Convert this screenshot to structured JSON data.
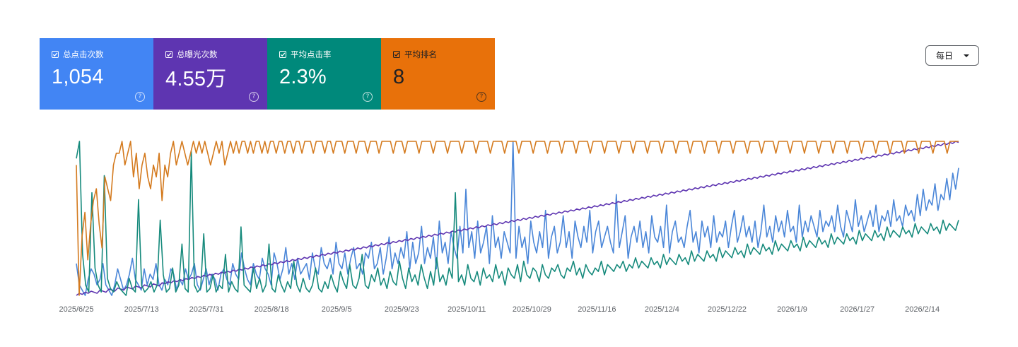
{
  "metrics": [
    {
      "label": "总点击次数",
      "value": "1,054",
      "help": "?",
      "color": "#4285f4"
    },
    {
      "label": "总曝光次数",
      "value": "4.55万",
      "help": "?",
      "color": "#5e35b1"
    },
    {
      "label": "平均点击率",
      "value": "2.3%",
      "help": "?",
      "color": "#00897b"
    },
    {
      "label": "平均排名",
      "value": "8",
      "help": "?",
      "color": "#e8710a"
    }
  ],
  "granularity": {
    "label": "每日"
  },
  "chart_data": {
    "type": "line",
    "x_tick_labels": [
      "2025/6/25",
      "2025/7/13",
      "2025/7/31",
      "2025/8/18",
      "2025/9/5",
      "2025/9/23",
      "2025/10/11",
      "2025/10/29",
      "2025/11/16",
      "2025/12/4",
      "2025/12/22",
      "2026/1/9",
      "2026/1/27",
      "2026/2/14"
    ],
    "x_range": [
      "2025/6/25",
      "2026/2/27"
    ],
    "grid": false,
    "legend": "metric cards (top)",
    "series": [
      {
        "name": "总点击次数",
        "color": "#4a86d8",
        "values": [
          6,
          2,
          1,
          0,
          3,
          5,
          4,
          2,
          3,
          6,
          2,
          1,
          0,
          2,
          5,
          3,
          1,
          2,
          4,
          7,
          3,
          2,
          1,
          5,
          2,
          4,
          3,
          6,
          2,
          1,
          3,
          2,
          5,
          4,
          1,
          3,
          2,
          5,
          3,
          4,
          6,
          2,
          1,
          3,
          5,
          2,
          4,
          3,
          1,
          4,
          5,
          3,
          2,
          6,
          4,
          3,
          8,
          5,
          3,
          2,
          6,
          4,
          3,
          7,
          5,
          4,
          2,
          8,
          6,
          3,
          5,
          9,
          4,
          6,
          3,
          7,
          4,
          5,
          6,
          3,
          8,
          5,
          4,
          9,
          6,
          5,
          7,
          4,
          10,
          6,
          5,
          8,
          4,
          7,
          9,
          5,
          6,
          4,
          8,
          7,
          10,
          5,
          6,
          9,
          4,
          7,
          11,
          5,
          8,
          6,
          9,
          7,
          12,
          5,
          10,
          6,
          8,
          13,
          6,
          9,
          7,
          11,
          5,
          14,
          8,
          10,
          6,
          12,
          9,
          7,
          13,
          8,
          20,
          9,
          12,
          7,
          14,
          8,
          10,
          13,
          6,
          15,
          9,
          11,
          7,
          12,
          10,
          8,
          29,
          7,
          13,
          9,
          11,
          6,
          14,
          10,
          8,
          12,
          9,
          16,
          7,
          11,
          13,
          8,
          10,
          15,
          9,
          12,
          7,
          14,
          11,
          9,
          13,
          10,
          16,
          8,
          12,
          14,
          9,
          11,
          13,
          10,
          8,
          19,
          9,
          12,
          15,
          7,
          11,
          13,
          10,
          14,
          9,
          12,
          8,
          15,
          11,
          10,
          13,
          9,
          17,
          8,
          12,
          14,
          10,
          11,
          9,
          13,
          16,
          10,
          12,
          8,
          14,
          11,
          13,
          9,
          15,
          10,
          12,
          11,
          14,
          9,
          13,
          16,
          10,
          12,
          15,
          11,
          13,
          10,
          14,
          9,
          12,
          17,
          11,
          13,
          10,
          15,
          12,
          14,
          11,
          16,
          12,
          13,
          10,
          17,
          11,
          14,
          12,
          15,
          13,
          11,
          16,
          12,
          14,
          13,
          15,
          12,
          17,
          13,
          11,
          16,
          14,
          12,
          18,
          13,
          15,
          12,
          14,
          16,
          13,
          17,
          12,
          15,
          14,
          16,
          13,
          18,
          14,
          15,
          13,
          17,
          15,
          16,
          14,
          19,
          15,
          20,
          16,
          18,
          17,
          21,
          16,
          19,
          18,
          22,
          18,
          23,
          20,
          24
        ]
      },
      {
        "name": "总曝光次数",
        "color": "#5e35b1",
        "values": [
          10,
          12,
          11,
          13,
          12,
          14,
          13,
          12,
          15,
          14,
          13,
          16,
          15,
          14,
          17,
          16,
          15,
          18,
          17,
          16,
          19,
          18,
          17,
          20,
          19,
          18,
          21,
          20,
          19,
          22,
          21,
          23,
          22,
          24,
          23,
          25,
          24,
          26,
          25,
          27,
          26,
          28,
          27,
          29,
          28,
          30,
          29,
          31,
          30,
          32,
          31,
          33,
          32,
          34,
          33,
          35,
          34,
          36,
          35,
          37,
          36,
          38,
          37,
          39,
          38,
          40,
          39,
          41,
          40,
          42,
          41,
          43,
          42,
          44,
          43,
          45,
          44,
          46,
          45,
          47,
          46,
          48,
          47,
          49,
          48,
          50,
          49,
          51,
          50,
          52,
          51,
          53,
          52,
          54,
          53,
          55,
          54,
          56,
          55,
          57,
          56,
          58,
          57,
          59,
          58,
          60,
          59,
          61,
          60,
          62,
          61,
          63,
          62,
          64,
          63,
          65,
          64,
          66,
          65,
          67,
          66,
          68,
          67,
          69,
          68,
          70,
          69,
          71,
          70,
          72,
          71,
          73,
          72,
          74,
          73,
          75,
          74,
          76,
          75,
          77,
          76,
          78,
          77,
          79,
          78,
          80,
          79,
          81,
          80,
          82,
          81,
          83,
          82,
          84,
          83,
          85,
          84,
          86,
          85,
          87,
          86,
          88,
          87,
          89,
          88,
          90,
          89,
          91,
          90,
          92,
          91,
          93,
          92,
          94,
          93,
          95,
          94,
          96,
          95,
          97,
          96,
          98,
          97,
          99,
          98,
          100,
          99,
          101,
          100,
          102,
          101,
          103,
          102,
          104,
          103,
          105,
          104,
          106,
          105,
          107,
          106,
          108,
          107,
          109,
          108,
          110,
          109,
          111,
          110,
          112,
          111,
          113,
          112,
          114,
          113,
          115,
          114,
          116,
          115,
          117,
          116,
          118,
          117,
          119,
          118,
          120,
          119,
          121,
          120,
          122,
          121,
          123,
          122,
          124,
          123,
          125,
          124,
          126,
          125,
          127,
          126,
          128,
          127,
          129,
          128,
          130,
          129,
          131,
          130,
          132,
          131,
          133,
          132,
          134,
          133,
          135,
          134,
          136,
          135,
          137,
          136,
          138,
          137,
          139,
          138,
          140,
          139,
          141,
          140,
          142,
          141,
          143,
          142,
          144,
          143,
          145,
          144,
          146,
          145,
          147,
          146,
          148,
          147,
          149,
          148,
          150,
          149,
          151,
          150,
          152,
          151,
          153,
          152,
          154,
          153,
          155,
          154,
          156,
          155
        ]
      },
      {
        "name": "平均点击率",
        "color": "#168a7c",
        "values": [
          40,
          45,
          12,
          3,
          1,
          30,
          8,
          3,
          1,
          35,
          5,
          2,
          1,
          4,
          2,
          1,
          0,
          5,
          2,
          1,
          28,
          3,
          1,
          2,
          4,
          1,
          3,
          22,
          6,
          1,
          2,
          8,
          1,
          3,
          15,
          2,
          1,
          42,
          3,
          1,
          2,
          18,
          1,
          2,
          6,
          1,
          3,
          2,
          12,
          1,
          4,
          2,
          1,
          20,
          3,
          2,
          1,
          8,
          2,
          5,
          1,
          3,
          15,
          2,
          1,
          6,
          3,
          1,
          4,
          2,
          10,
          3,
          1,
          5,
          2,
          1,
          3,
          8,
          2,
          1,
          4,
          2,
          6,
          3,
          1,
          7,
          4,
          2,
          9,
          3,
          2,
          5,
          12,
          3,
          2,
          6,
          4,
          8,
          3,
          5,
          2,
          7,
          4,
          3,
          10,
          5,
          2,
          8,
          4,
          6,
          3,
          9,
          5,
          2,
          7,
          3,
          11,
          4,
          6,
          3,
          8,
          5,
          30,
          4,
          6,
          3,
          9,
          5,
          4,
          7,
          3,
          8,
          5,
          6,
          4,
          9,
          5,
          7,
          3,
          8,
          6,
          5,
          9,
          4,
          10,
          6,
          5,
          8,
          7,
          4,
          9,
          6,
          5,
          8,
          7,
          9,
          6,
          5,
          8,
          7,
          10,
          6,
          8,
          5,
          9,
          7,
          6,
          8,
          7,
          10,
          6,
          9,
          8,
          7,
          9,
          8,
          10,
          7,
          9,
          8,
          11,
          8,
          10,
          9,
          8,
          11,
          9,
          10,
          8,
          12,
          9,
          11,
          10,
          9,
          12,
          10,
          11,
          9,
          13,
          10,
          12,
          11,
          10,
          13,
          11,
          12,
          10,
          14,
          11,
          13,
          12,
          11,
          14,
          12,
          13,
          11,
          15,
          12,
          14,
          13,
          12,
          15,
          13,
          14,
          12,
          16,
          13,
          15,
          14,
          13,
          16,
          14,
          15,
          13,
          17,
          14,
          16,
          15,
          14,
          17,
          15,
          16,
          14,
          18,
          15,
          17,
          16,
          15,
          18,
          16,
          17,
          15,
          19,
          16,
          18,
          17,
          16,
          19,
          17,
          18,
          16,
          20,
          17,
          19,
          18,
          17,
          20,
          18,
          19,
          17,
          21,
          18,
          20,
          19,
          18,
          21,
          19,
          20,
          18,
          22,
          19,
          21,
          20,
          19,
          22
        ]
      },
      {
        "name": "平均排名",
        "color": "#d47a1e",
        "values": [
          4,
          15,
          10,
          8,
          12,
          9,
          7,
          6,
          9,
          11,
          5,
          6,
          7,
          4,
          3,
          3,
          2,
          4,
          3,
          2,
          5,
          3,
          6,
          4,
          3,
          5,
          6,
          4,
          5,
          3,
          7,
          4,
          5,
          3,
          2,
          4,
          3,
          2,
          3,
          4,
          3,
          2,
          3,
          2,
          3,
          2,
          3,
          4,
          3,
          2,
          3,
          2,
          4,
          3,
          2,
          3,
          2,
          3,
          2,
          2,
          3,
          2,
          3,
          2,
          2,
          3,
          2,
          3,
          2,
          2,
          3,
          2,
          2,
          3,
          2,
          2,
          3,
          2,
          2,
          3,
          2,
          2,
          2,
          3,
          2,
          2,
          2,
          3,
          2,
          2,
          3,
          2,
          2,
          2,
          3,
          2,
          2,
          2,
          3,
          2,
          2,
          2,
          3,
          2,
          2,
          2,
          3,
          2,
          2,
          2,
          2,
          3,
          2,
          2,
          2,
          3,
          2,
          2,
          2,
          2,
          3,
          2,
          2,
          2,
          2,
          3,
          2,
          2,
          2,
          2,
          3,
          2,
          2,
          2,
          2,
          3,
          2,
          2,
          2,
          2,
          3,
          2,
          2,
          2,
          2,
          3,
          2,
          2,
          2,
          2,
          3,
          2,
          2,
          2,
          2,
          3,
          2,
          2,
          2,
          2,
          3,
          2,
          2,
          2,
          2,
          3,
          2,
          2,
          2,
          2,
          3,
          2,
          2,
          2,
          2,
          3,
          2,
          2,
          2,
          2,
          3,
          2,
          2,
          2,
          2,
          3,
          2,
          2,
          2,
          2,
          3,
          2,
          2,
          2,
          2,
          3,
          2,
          2,
          2,
          2,
          3,
          2,
          2,
          2,
          2,
          3,
          2,
          2,
          2,
          2,
          3,
          2,
          2,
          2,
          2,
          3,
          2,
          2,
          2,
          2,
          3,
          2,
          2,
          2,
          2,
          3,
          2,
          2,
          2,
          2,
          3,
          2,
          2,
          2,
          2,
          3,
          2,
          2,
          2,
          2,
          3,
          2,
          2,
          2,
          2,
          3,
          2,
          2,
          2,
          2,
          3,
          2,
          2,
          2,
          2,
          3,
          2,
          2,
          2,
          2,
          3,
          2,
          2,
          2,
          2,
          3,
          2,
          2,
          2,
          2,
          3,
          2,
          2,
          2,
          2,
          3,
          2,
          2,
          2,
          2,
          3,
          2,
          2,
          2,
          2,
          3,
          2,
          2,
          2,
          2,
          3,
          2,
          2,
          2,
          2,
          3,
          2,
          2,
          2,
          2,
          3,
          2,
          2,
          2,
          2,
          3,
          2,
          2,
          2,
          2
        ]
      }
    ]
  }
}
